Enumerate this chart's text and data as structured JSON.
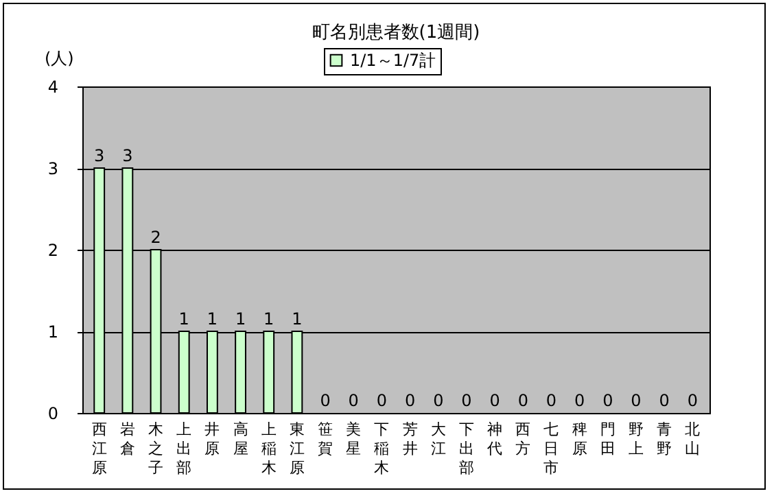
{
  "chart_data": {
    "type": "bar",
    "title": "町名別患者数(1週間)",
    "ylabel": "(人)",
    "categories": [
      "西江原",
      "岩倉",
      "木之子",
      "上出部",
      "井原",
      "高屋",
      "上稲木",
      "東江原",
      "笹賀",
      "美星",
      "下稲木",
      "芳井",
      "大江",
      "下出部",
      "神代",
      "西方",
      "七日市",
      "稗原",
      "門田",
      "野上",
      "青野",
      "北山"
    ],
    "series": [
      {
        "name": "1/1～1/7計",
        "color": "#ccffcc",
        "values": [
          3,
          3,
          2,
          1,
          1,
          1,
          1,
          1,
          0,
          0,
          0,
          0,
          0,
          0,
          0,
          0,
          0,
          0,
          0,
          0,
          0,
          0
        ]
      }
    ],
    "ylim": [
      0,
      4
    ],
    "yticks": [
      0,
      1,
      2,
      3,
      4
    ],
    "grid": "y",
    "legend": "top",
    "data_labels": true
  }
}
